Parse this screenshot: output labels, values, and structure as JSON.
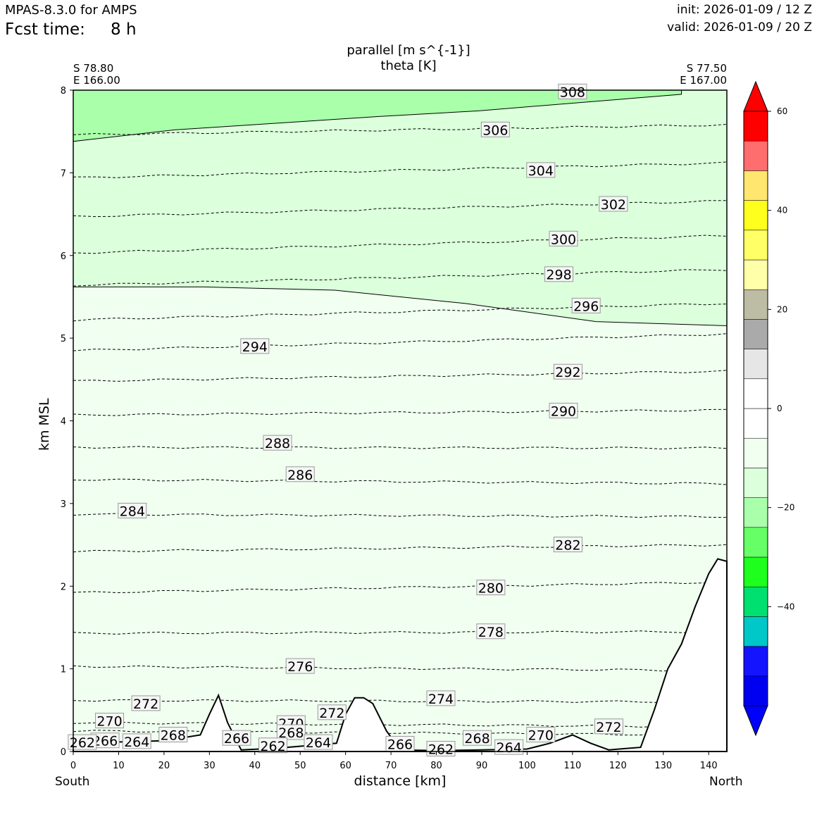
{
  "header": {
    "model": "MPAS-8.3.0 for AMPS",
    "fcst_label": "Fcst time:",
    "fcst_value": "8 h",
    "init": "init: 2026-01-09 / 12 Z",
    "valid": "valid: 2026-01-09 / 20 Z"
  },
  "section": {
    "start_lat": "S 78.80",
    "start_lon": "E 166.00",
    "end_lat": "S 77.50",
    "end_lon": "E 167.00"
  },
  "colors": {
    "terrain_fill": "#ffffff",
    "contour_line": "#000000",
    "colorbar": [
      "#0000ff",
      "#0000f0",
      "#1414ff",
      "#00c8c8",
      "#00e070",
      "#1eff1e",
      "#66ff66",
      "#aaffaa",
      "#dcffdc",
      "#f0fff0",
      "#ffffff",
      "#ffffff",
      "#e6e6e6",
      "#aaaaaa",
      "#bdbca4",
      "#ffffaa",
      "#ffff66",
      "#ffff1e",
      "#ffe66e",
      "#ff6e6e",
      "#ff0000"
    ]
  },
  "chart_data": {
    "type": "cross-section",
    "title_lines": [
      "parallel [m s^{-1}]",
      "theta [K]"
    ],
    "xlabel": "distance [km]",
    "ylabel": "km MSL",
    "x_end_labels": [
      "South",
      "North"
    ],
    "xlim": [
      0,
      144
    ],
    "ylim": [
      0,
      8
    ],
    "xticks": [
      "0",
      "10",
      "20",
      "30",
      "40",
      "50",
      "60",
      "70",
      "80",
      "90",
      "100",
      "110",
      "120",
      "130",
      "140"
    ],
    "yticks": [
      "0",
      "1",
      "2",
      "3",
      "4",
      "5",
      "6",
      "7",
      "8"
    ],
    "colorbar": {
      "range": [
        -60,
        60
      ],
      "step": 6,
      "ticks": [
        "60",
        "40",
        "20",
        "0",
        "−20",
        "−40"
      ],
      "extend": "both"
    },
    "wind_regions": [
      {
        "level": "-18 to -12",
        "top_km": 8,
        "bottom_km": [
          7.38,
          7.52,
          7.6,
          7.68,
          7.75,
          7.85,
          7.95
        ]
      },
      {
        "level": "-12 to -6",
        "top_km": 7.5,
        "bottom_km": [
          5.62,
          5.62,
          5.58,
          5.42,
          5.2,
          5.15
        ]
      },
      {
        "level": "-6 to 0",
        "top_km": 5.4,
        "bottom_km": 0
      }
    ],
    "terrain": {
      "x": [
        0,
        20,
        28,
        30,
        32,
        34,
        37,
        45,
        58,
        60,
        62,
        64,
        66,
        69,
        72,
        80,
        90,
        100,
        105,
        110,
        114,
        118,
        125,
        128,
        131,
        134,
        137,
        140,
        142,
        144
      ],
      "y": [
        0.1,
        0.13,
        0.2,
        0.45,
        0.68,
        0.35,
        0.02,
        0.04,
        0.1,
        0.45,
        0.65,
        0.65,
        0.58,
        0.25,
        0.02,
        0.01,
        0.02,
        0.03,
        0.1,
        0.2,
        0.1,
        0.02,
        0.05,
        0.5,
        1.0,
        1.3,
        1.75,
        2.15,
        2.33,
        2.3
      ]
    },
    "theta_contours": [
      {
        "value": 306,
        "y_left": 7.46,
        "y_right": 7.58,
        "label_x": 93
      },
      {
        "value": 304,
        "y_left": 6.94,
        "y_right": 7.12,
        "label_x": 104
      },
      {
        "value": 302,
        "y_left": 6.47,
        "y_right": 6.66,
        "label_x": 119
      },
      {
        "value": 300,
        "y_left": 6.03,
        "y_right": 6.24,
        "label_x": 108
      },
      {
        "value": 298,
        "y_left": 5.64,
        "y_right": 5.83,
        "label_x": 107
      },
      {
        "value": 296,
        "y_left": 5.22,
        "y_right": 5.42,
        "label_x": 113
      },
      {
        "value": 294,
        "y_left": 4.85,
        "y_right": 5.05,
        "label_x": 40
      },
      {
        "value": 292,
        "y_left": 4.48,
        "y_right": 4.6,
        "label_x": 109
      },
      {
        "value": 290,
        "y_left": 4.07,
        "y_right": 4.13,
        "label_x": 108
      },
      {
        "value": 288,
        "y_left": 3.68,
        "y_right": 3.67,
        "label_x": 45
      },
      {
        "value": 286,
        "y_left": 3.29,
        "y_right": 3.24,
        "label_x": 50
      },
      {
        "value": 284,
        "y_left": 2.87,
        "y_right": 2.84,
        "label_x": 13
      },
      {
        "value": 282,
        "y_left": 2.42,
        "y_right": 2.5,
        "label_x": 109
      },
      {
        "value": 280,
        "y_left": 1.92,
        "y_right": 2.05,
        "label_x": 92
      },
      {
        "value": 278,
        "y_left": 1.43,
        "y_right": 1.45,
        "label_x": 92
      },
      {
        "value": 276,
        "y_left": 1.03,
        "y_right": 0.98,
        "label_x": 50
      },
      {
        "value": 274,
        "y_left": 0.62,
        "y_right": 0.6,
        "label_x": 81
      },
      {
        "value": 272,
        "y_left": 0.35,
        "y_right": 0.3,
        "label_x": 118
      },
      {
        "value": 270,
        "y_left": 0.25,
        "y_right": 0.2,
        "label_x": 103
      }
    ],
    "contour_labels": [
      {
        "text": "308",
        "x": 110,
        "y": 7.98
      },
      {
        "text": "306",
        "x": 93,
        "y": 7.52
      },
      {
        "text": "304",
        "x": 103,
        "y": 7.03
      },
      {
        "text": "302",
        "x": 119,
        "y": 6.62
      },
      {
        "text": "300",
        "x": 108,
        "y": 6.2
      },
      {
        "text": "298",
        "x": 107,
        "y": 5.77
      },
      {
        "text": "296",
        "x": 113,
        "y": 5.39
      },
      {
        "text": "294",
        "x": 40,
        "y": 4.9
      },
      {
        "text": "292",
        "x": 109,
        "y": 4.59
      },
      {
        "text": "290",
        "x": 108,
        "y": 4.12
      },
      {
        "text": "288",
        "x": 45,
        "y": 3.73
      },
      {
        "text": "286",
        "x": 50,
        "y": 3.35
      },
      {
        "text": "284",
        "x": 13,
        "y": 2.91
      },
      {
        "text": "282",
        "x": 109,
        "y": 2.5
      },
      {
        "text": "280",
        "x": 92,
        "y": 1.98
      },
      {
        "text": "278",
        "x": 92,
        "y": 1.45
      },
      {
        "text": "276",
        "x": 50,
        "y": 1.03
      },
      {
        "text": "274",
        "x": 81,
        "y": 0.64
      },
      {
        "text": "272",
        "x": 16,
        "y": 0.58
      },
      {
        "text": "272",
        "x": 57,
        "y": 0.47
      },
      {
        "text": "272",
        "x": 118,
        "y": 0.3
      },
      {
        "text": "270",
        "x": 8,
        "y": 0.37
      },
      {
        "text": "270",
        "x": 48,
        "y": 0.34
      },
      {
        "text": "270",
        "x": 103,
        "y": 0.2
      },
      {
        "text": "268",
        "x": 22,
        "y": 0.2
      },
      {
        "text": "268",
        "x": 48,
        "y": 0.23
      },
      {
        "text": "268",
        "x": 89,
        "y": 0.16
      },
      {
        "text": "266",
        "x": 7,
        "y": 0.13
      },
      {
        "text": "266",
        "x": 36,
        "y": 0.16
      },
      {
        "text": "266",
        "x": 72,
        "y": 0.09
      },
      {
        "text": "264",
        "x": 14,
        "y": 0.12
      },
      {
        "text": "264",
        "x": 54,
        "y": 0.11
      },
      {
        "text": "264",
        "x": 96,
        "y": 0.05
      },
      {
        "text": "262",
        "x": 2,
        "y": 0.11
      },
      {
        "text": "262",
        "x": 44,
        "y": 0.07
      },
      {
        "text": "262",
        "x": 81,
        "y": 0.03
      }
    ]
  }
}
